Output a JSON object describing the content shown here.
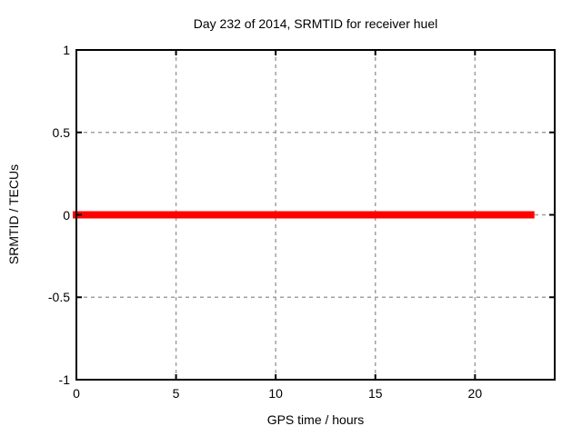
{
  "page": {
    "background": "#ffffff",
    "text_color": "#000000"
  },
  "chart_data": {
    "type": "line",
    "title": "Day 232 of 2014, SRMTID for receiver huel",
    "xlabel": "GPS time / hours",
    "ylabel": "SRMTID / TECUs",
    "xlim": [
      0,
      24
    ],
    "ylim": [
      -1,
      1
    ],
    "xticks": [
      0,
      5,
      10,
      15,
      20
    ],
    "yticks": [
      -1,
      -0.5,
      0,
      0.5,
      1
    ],
    "grid": true,
    "grid_color": "#a0a0a0",
    "axis_color": "#000000",
    "legend": "none",
    "series": [
      {
        "name": "SRMTID",
        "color": "#ff0000",
        "linewidth": 8,
        "x": [
          0,
          22.8
        ],
        "y": [
          0,
          0
        ]
      }
    ]
  }
}
